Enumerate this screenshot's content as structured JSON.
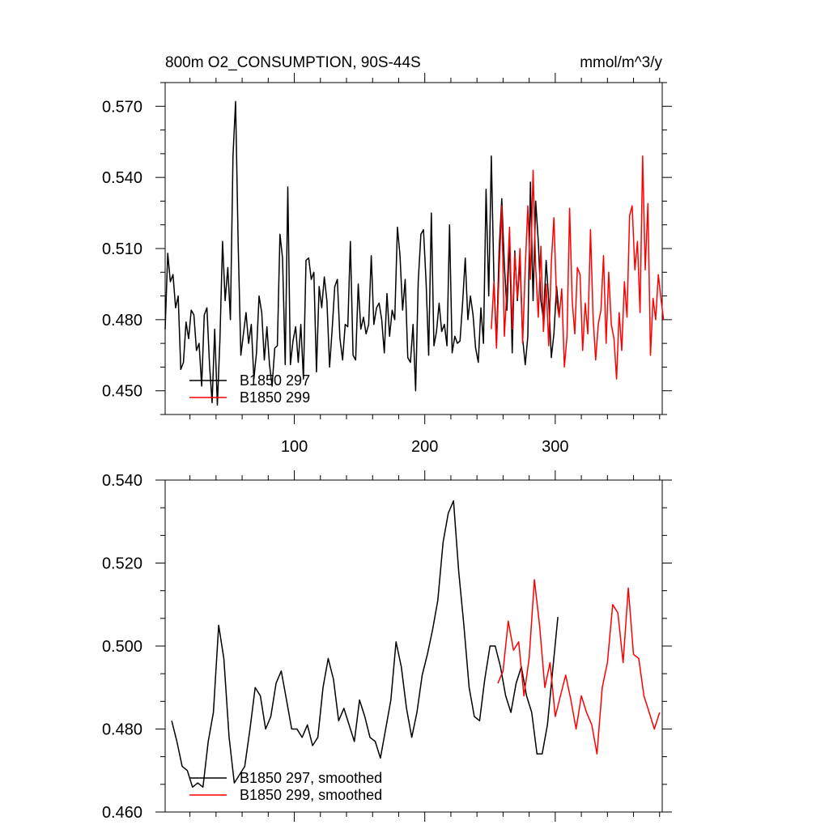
{
  "chart_data": [
    {
      "type": "line",
      "title": "800m O2_CONSUMPTION, 90S-44S",
      "units": "mmol/m^3/y",
      "xlim": [
        1,
        382
      ],
      "ylim": [
        0.44,
        0.58
      ],
      "xticks": [
        100,
        200,
        300
      ],
      "yticks": [
        0.45,
        0.48,
        0.51,
        0.54,
        0.57
      ],
      "ytick_labels": [
        "0.450",
        "0.480",
        "0.510",
        "0.540",
        "0.570"
      ],
      "legend_position": "bottom-left",
      "grid": false,
      "series": [
        {
          "name": "B1850 297",
          "color": "#000000",
          "x": [
            1,
            3,
            5,
            7,
            9,
            11,
            13,
            15,
            17,
            19,
            21,
            23,
            25,
            27,
            29,
            31,
            33,
            35,
            37,
            39,
            41,
            43,
            45,
            47,
            49,
            51,
            53,
            55,
            57,
            59,
            61,
            63,
            65,
            67,
            69,
            71,
            73,
            75,
            77,
            79,
            81,
            83,
            85,
            87,
            89,
            91,
            93,
            95,
            97,
            99,
            101,
            103,
            105,
            107,
            109,
            111,
            113,
            115,
            117,
            119,
            121,
            123,
            125,
            127,
            129,
            131,
            133,
            135,
            137,
            139,
            141,
            143,
            145,
            147,
            149,
            151,
            153,
            155,
            157,
            159,
            161,
            163,
            165,
            167,
            169,
            171,
            173,
            175,
            177,
            179,
            181,
            183,
            185,
            187,
            189,
            191,
            193,
            195,
            197,
            199,
            201,
            203,
            205,
            207,
            209,
            211,
            213,
            215,
            217,
            219,
            221,
            223,
            225,
            227,
            229,
            231,
            233,
            235,
            237,
            239,
            241,
            243,
            245,
            247,
            249,
            251,
            253,
            255,
            257,
            259,
            261,
            263,
            265,
            267,
            269,
            271,
            273,
            275,
            277,
            279,
            281,
            283,
            285,
            287,
            289,
            291,
            293,
            295,
            297,
            299,
            301,
            303
          ],
          "values": [
            0.476,
            0.508,
            0.496,
            0.499,
            0.485,
            0.49,
            0.459,
            0.462,
            0.479,
            0.472,
            0.484,
            0.482,
            0.467,
            0.47,
            0.452,
            0.482,
            0.485,
            0.461,
            0.445,
            0.476,
            0.444,
            0.472,
            0.513,
            0.488,
            0.502,
            0.48,
            0.549,
            0.572,
            0.512,
            0.465,
            0.474,
            0.483,
            0.47,
            0.478,
            0.455,
            0.466,
            0.49,
            0.483,
            0.463,
            0.477,
            0.461,
            0.452,
            0.468,
            0.469,
            0.516,
            0.506,
            0.461,
            0.536,
            0.461,
            0.471,
            0.477,
            0.462,
            0.478,
            0.455,
            0.505,
            0.506,
            0.497,
            0.5,
            0.458,
            0.494,
            0.485,
            0.498,
            0.488,
            0.46,
            0.476,
            0.494,
            0.497,
            0.472,
            0.463,
            0.478,
            0.477,
            0.513,
            0.465,
            0.463,
            0.495,
            0.476,
            0.481,
            0.474,
            0.478,
            0.507,
            0.478,
            0.485,
            0.487,
            0.48,
            0.466,
            0.491,
            0.473,
            0.484,
            0.48,
            0.519,
            0.507,
            0.484,
            0.497,
            0.464,
            0.462,
            0.478,
            0.45,
            0.496,
            0.516,
            0.518,
            0.496,
            0.465,
            0.525,
            0.469,
            0.475,
            0.487,
            0.475,
            0.478,
            0.469,
            0.52,
            0.466,
            0.473,
            0.47,
            0.471,
            0.487,
            0.506,
            0.48,
            0.49,
            0.482,
            0.468,
            0.462,
            0.485,
            0.47,
            0.535,
            0.49,
            0.549,
            0.497,
            0.47,
            0.51,
            0.531,
            0.503,
            0.484,
            0.514,
            0.466,
            0.509,
            0.488,
            0.505,
            0.472,
            0.461,
            0.473,
            0.538,
            0.488,
            0.53,
            0.513,
            0.488,
            0.48,
            0.505,
            0.488,
            0.464,
            0.474,
            0.494,
            0.482
          ]
        },
        {
          "name": "B1850 299",
          "color": "#ff0000",
          "x": [
            251,
            253,
            255,
            257,
            259,
            261,
            263,
            265,
            267,
            269,
            271,
            273,
            275,
            277,
            279,
            281,
            283,
            285,
            287,
            289,
            291,
            293,
            295,
            297,
            299,
            301,
            303,
            305,
            307,
            309,
            311,
            313,
            315,
            317,
            319,
            321,
            323,
            325,
            327,
            329,
            331,
            333,
            335,
            337,
            339,
            341,
            343,
            345,
            347,
            349,
            351,
            353,
            355,
            357,
            359,
            361,
            363,
            365,
            367,
            369,
            371,
            373,
            375,
            377,
            379,
            381,
            383
          ],
          "values": [
            0.476,
            0.496,
            0.468,
            0.501,
            0.528,
            0.473,
            0.493,
            0.519,
            0.476,
            0.508,
            0.489,
            0.51,
            0.47,
            0.502,
            0.528,
            0.497,
            0.543,
            0.502,
            0.481,
            0.511,
            0.475,
            0.495,
            0.469,
            0.504,
            0.523,
            0.488,
            0.481,
            0.493,
            0.46,
            0.473,
            0.527,
            0.488,
            0.474,
            0.502,
            0.499,
            0.467,
            0.487,
            0.474,
            0.518,
            0.481,
            0.463,
            0.478,
            0.484,
            0.507,
            0.47,
            0.5,
            0.478,
            0.472,
            0.455,
            0.483,
            0.467,
            0.496,
            0.481,
            0.524,
            0.528,
            0.501,
            0.513,
            0.483,
            0.549,
            0.501,
            0.529,
            0.465,
            0.489,
            0.48,
            0.499,
            0.489,
            0.48
          ]
        }
      ]
    },
    {
      "type": "line",
      "xlim": [
        1,
        382
      ],
      "ylim": [
        0.46,
        0.54
      ],
      "yticks": [
        0.46,
        0.48,
        0.5,
        0.52,
        0.54
      ],
      "ytick_labels": [
        "0.460",
        "0.480",
        "0.500",
        "0.520",
        "0.540"
      ],
      "legend_position": "bottom-left",
      "grid": false,
      "series": [
        {
          "name": "B1850 297, smoothed",
          "color": "#000000",
          "x": [
            6,
            10,
            14,
            18,
            22,
            26,
            30,
            34,
            38,
            42,
            46,
            50,
            54,
            58,
            62,
            66,
            70,
            74,
            78,
            82,
            86,
            90,
            94,
            98,
            102,
            106,
            110,
            114,
            118,
            122,
            126,
            130,
            134,
            138,
            142,
            146,
            150,
            154,
            158,
            162,
            166,
            170,
            174,
            178,
            182,
            186,
            190,
            194,
            198,
            202,
            206,
            210,
            214,
            218,
            222,
            226,
            230,
            234,
            238,
            242,
            246,
            250,
            254,
            258,
            262,
            266,
            270,
            274,
            278,
            282,
            286,
            290,
            294,
            298,
            302
          ],
          "values": [
            0.482,
            0.477,
            0.471,
            0.47,
            0.466,
            0.467,
            0.466,
            0.477,
            0.484,
            0.505,
            0.497,
            0.478,
            0.467,
            0.469,
            0.471,
            0.48,
            0.49,
            0.488,
            0.48,
            0.483,
            0.491,
            0.494,
            0.487,
            0.48,
            0.48,
            0.478,
            0.481,
            0.476,
            0.478,
            0.49,
            0.497,
            0.492,
            0.482,
            0.485,
            0.481,
            0.477,
            0.487,
            0.483,
            0.478,
            0.477,
            0.473,
            0.48,
            0.487,
            0.501,
            0.495,
            0.485,
            0.478,
            0.484,
            0.493,
            0.498,
            0.504,
            0.511,
            0.525,
            0.532,
            0.535,
            0.518,
            0.505,
            0.49,
            0.483,
            0.482,
            0.492,
            0.5,
            0.5,
            0.495,
            0.488,
            0.484,
            0.491,
            0.495,
            0.488,
            0.484,
            0.474,
            0.474,
            0.481,
            0.494,
            0.507
          ]
        },
        {
          "name": "B1850 299, smoothed",
          "color": "#ff0000",
          "x": [
            256,
            260,
            264,
            268,
            272,
            276,
            280,
            284,
            288,
            292,
            296,
            300,
            304,
            308,
            312,
            316,
            320,
            324,
            328,
            332,
            336,
            340,
            344,
            348,
            352,
            356,
            360,
            364,
            368,
            372,
            376,
            380
          ],
          "values": [
            0.491,
            0.494,
            0.506,
            0.499,
            0.501,
            0.488,
            0.497,
            0.516,
            0.505,
            0.49,
            0.496,
            0.483,
            0.488,
            0.493,
            0.487,
            0.48,
            0.488,
            0.484,
            0.481,
            0.474,
            0.49,
            0.496,
            0.51,
            0.508,
            0.496,
            0.514,
            0.498,
            0.497,
            0.488,
            0.484,
            0.48,
            0.484
          ]
        }
      ]
    }
  ]
}
